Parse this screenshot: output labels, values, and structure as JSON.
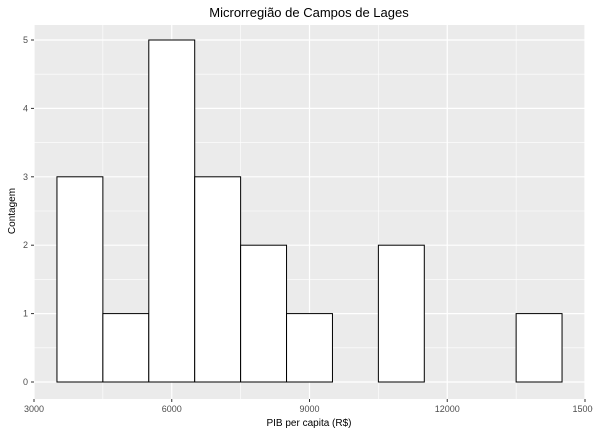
{
  "chart_data": {
    "type": "bar",
    "title": "Microrregião de  Campos de Lages",
    "xlabel": "PIB per capita (R$)",
    "ylabel": "Contagem",
    "xlim": [
      3000,
      15000
    ],
    "ylim": [
      0,
      5
    ],
    "x_ticks": [
      3000,
      6000,
      9000,
      12000,
      15000
    ],
    "x_tick_labels": [
      "3000",
      "6000",
      "9000",
      "12000",
      "15000"
    ],
    "y_ticks": [
      0,
      1,
      2,
      3,
      4,
      5
    ],
    "y_tick_labels": [
      "0",
      "1",
      "2",
      "3",
      "4",
      "5"
    ],
    "bins": [
      {
        "x0": 3500,
        "x1": 4500,
        "count": 3
      },
      {
        "x0": 4500,
        "x1": 5500,
        "count": 1
      },
      {
        "x0": 5500,
        "x1": 6500,
        "count": 5
      },
      {
        "x0": 6500,
        "x1": 7500,
        "count": 3
      },
      {
        "x0": 7500,
        "x1": 8500,
        "count": 2
      },
      {
        "x0": 8500,
        "x1": 9500,
        "count": 1
      },
      {
        "x0": 9500,
        "x1": 10500,
        "count": 0
      },
      {
        "x0": 10500,
        "x1": 11500,
        "count": 2
      },
      {
        "x0": 11500,
        "x1": 12500,
        "count": 0
      },
      {
        "x0": 12500,
        "x1": 13500,
        "count": 0
      },
      {
        "x0": 13500,
        "x1": 14500,
        "count": 1
      }
    ],
    "grid": true,
    "colors": {
      "panel_background": "#ebebeb",
      "grid": "#ffffff",
      "bar_fill": "#ffffff",
      "bar_outline": "#000000"
    }
  }
}
